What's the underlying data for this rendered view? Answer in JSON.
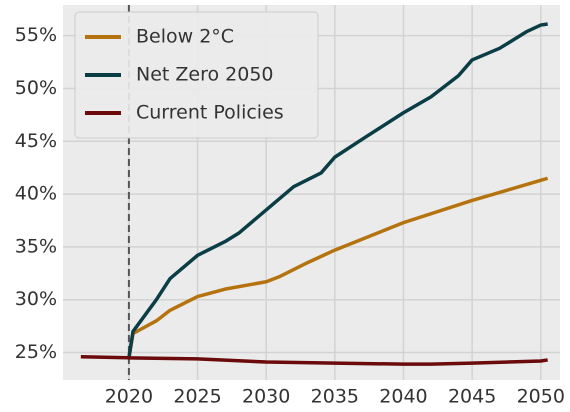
{
  "chart_data": {
    "type": "line",
    "xlim": [
      2015.2,
      2051.4
    ],
    "ylim": [
      22.4,
      57.9
    ],
    "xticks": [
      2020,
      2025,
      2030,
      2035,
      2040,
      2045,
      2050
    ],
    "yticks": [
      {
        "value": 25,
        "label": "25%"
      },
      {
        "value": 30,
        "label": "30%"
      },
      {
        "value": 35,
        "label": "35%"
      },
      {
        "value": 40,
        "label": "40%"
      },
      {
        "value": 45,
        "label": "45%"
      },
      {
        "value": 50,
        "label": "50%"
      },
      {
        "value": 55,
        "label": "55%"
      }
    ],
    "grid": true,
    "legend": "upper-left",
    "vline": 2020,
    "series": [
      {
        "name": "Below 2°C",
        "color": "#b5730f",
        "x": [
          2020,
          2020.3,
          2022,
          2023,
          2025,
          2027,
          2030,
          2031,
          2033,
          2035,
          2040,
          2045,
          2050,
          2050.5
        ],
        "values": [
          24.5,
          26.8,
          28.0,
          29.0,
          30.3,
          31.0,
          31.7,
          32.2,
          33.5,
          34.7,
          37.3,
          39.4,
          41.3,
          41.5
        ]
      },
      {
        "name": "Net Zero 2050",
        "color": "#0b3d45",
        "x": [
          2020,
          2020.3,
          2022,
          2023,
          2025,
          2027,
          2028,
          2030,
          2032,
          2034,
          2035,
          2037,
          2040,
          2042,
          2044,
          2045,
          2047,
          2049,
          2050,
          2050.5
        ],
        "values": [
          24.5,
          27.0,
          30.0,
          32.0,
          34.2,
          35.5,
          36.3,
          38.5,
          40.7,
          42.0,
          43.5,
          45.2,
          47.7,
          49.2,
          51.2,
          52.7,
          53.8,
          55.4,
          56.0,
          56.1
        ]
      },
      {
        "name": "Current Policies",
        "color": "#6b0a0a",
        "x": [
          2016.5,
          2020,
          2025,
          2030,
          2035,
          2040,
          2042,
          2045,
          2050,
          2050.5
        ],
        "values": [
          24.6,
          24.5,
          24.4,
          24.1,
          24.0,
          23.9,
          23.9,
          24.0,
          24.2,
          24.3
        ]
      }
    ]
  }
}
